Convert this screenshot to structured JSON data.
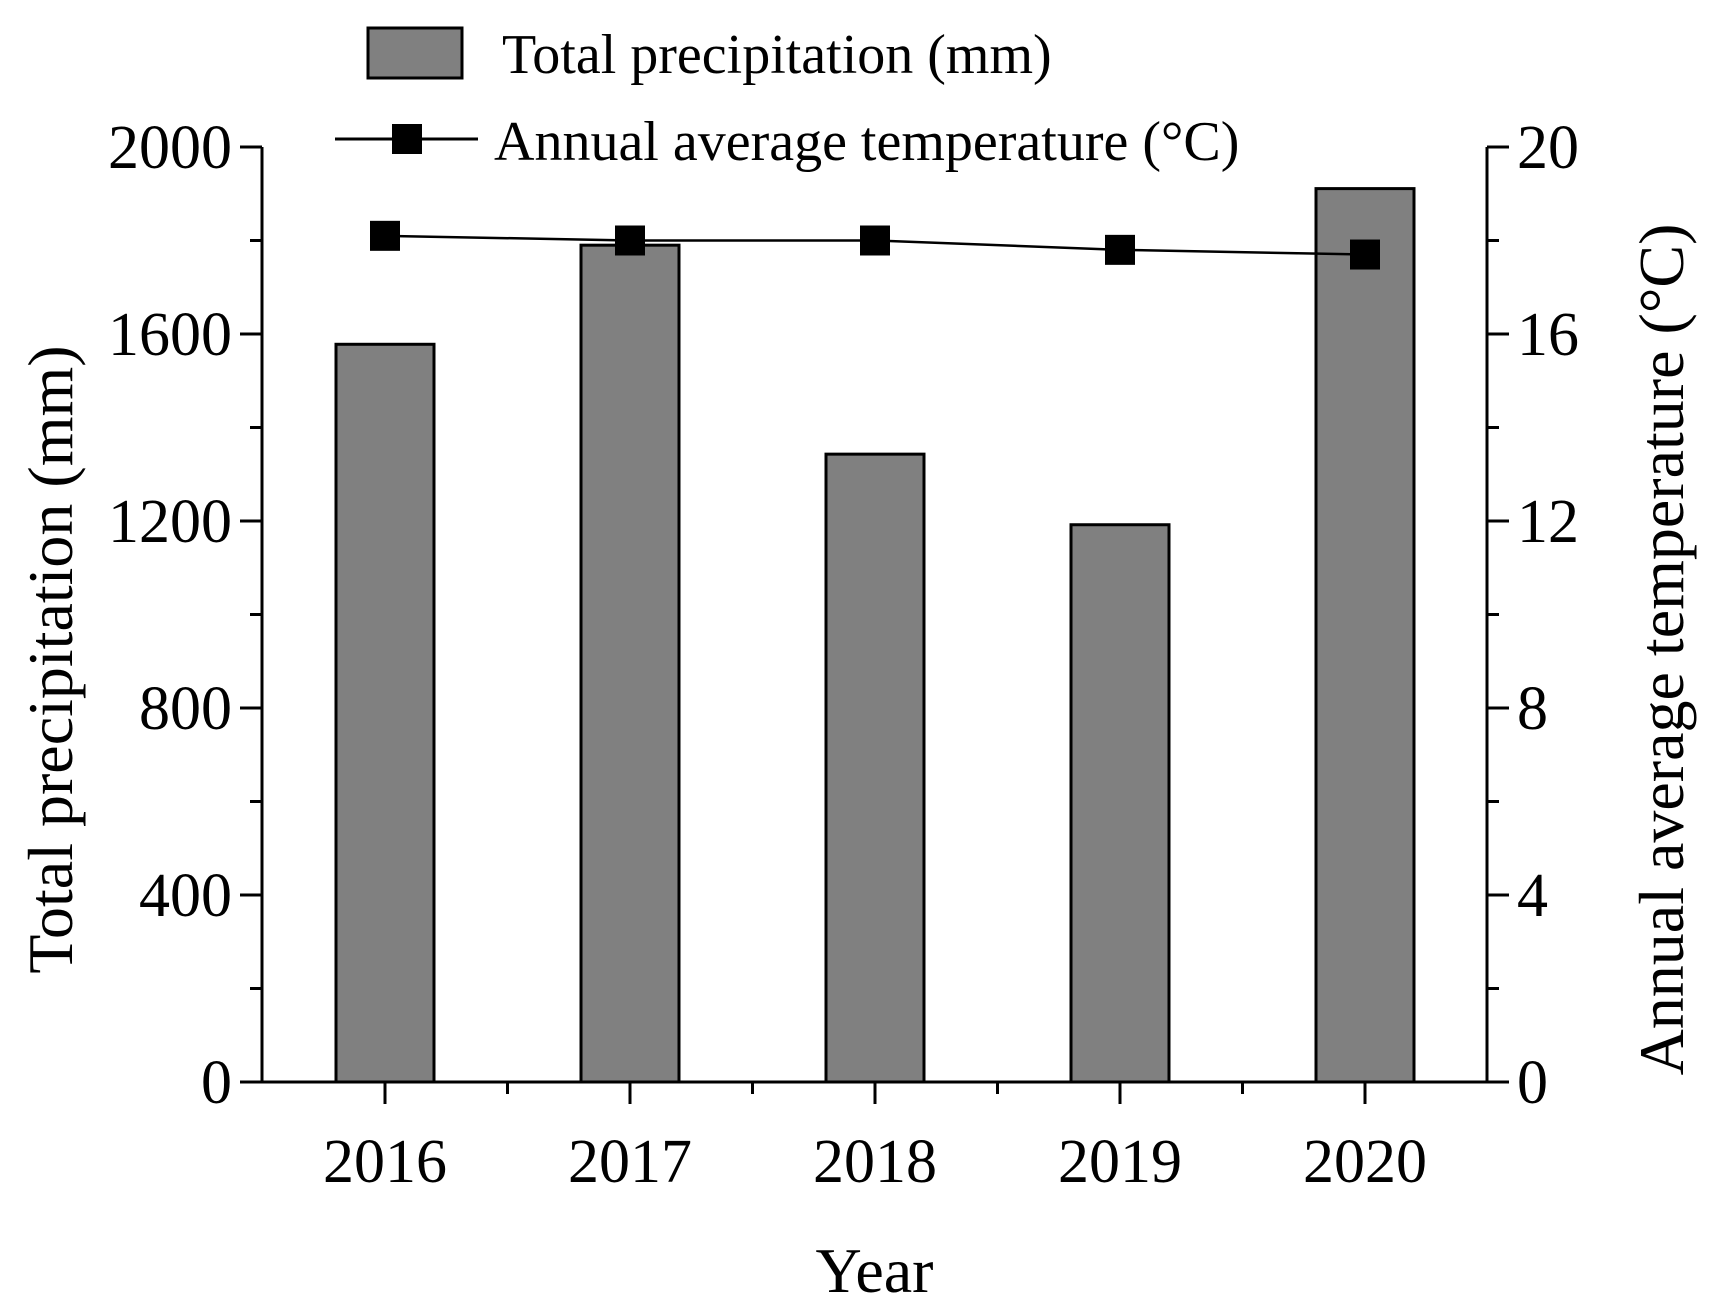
{
  "chart_data": {
    "type": "bar",
    "categories": [
      "2016",
      "2017",
      "2018",
      "2019",
      "2020"
    ],
    "series": [
      {
        "name": "Total precipitation (mm)",
        "type": "bar",
        "axis": "left",
        "color": "#808080",
        "values": [
          1578,
          1790,
          1343,
          1192,
          1911
        ]
      },
      {
        "name": "Annual average temperature (°C)",
        "type": "line",
        "axis": "right",
        "color": "#000000",
        "marker": "square",
        "values": [
          18.1,
          18.0,
          18.0,
          17.8,
          17.7
        ]
      }
    ],
    "xlabel": "Year",
    "ylabel": "Total precipitation (mm)",
    "y2label": "Annual average temperature (°C)",
    "ylim": [
      0,
      2000
    ],
    "y2lim": [
      0,
      20
    ],
    "yticks": [
      "0",
      "400",
      "800",
      "1200",
      "1600",
      "2000"
    ],
    "y2ticks": [
      "0",
      "4",
      "8",
      "12",
      "16",
      "20"
    ],
    "legend_position": "top-center",
    "grid": false
  }
}
